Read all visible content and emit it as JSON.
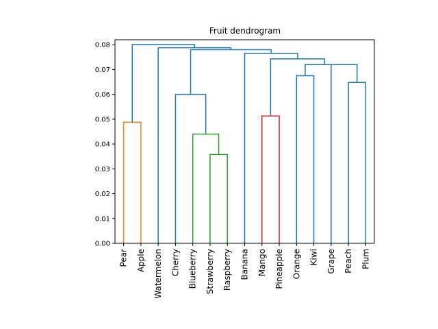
{
  "chart_data": {
    "type": "dendrogram",
    "title": "Fruit dendrogram",
    "xlabel": "",
    "ylabel": "",
    "ylim": [
      0,
      0.082
    ],
    "yticks": [
      "0.00",
      "0.01",
      "0.02",
      "0.03",
      "0.04",
      "0.05",
      "0.06",
      "0.07",
      "0.08"
    ],
    "ytick_values": [
      0,
      0.01,
      0.02,
      0.03,
      0.04,
      0.05,
      0.06,
      0.07,
      0.08
    ],
    "leaves": [
      "Pear",
      "Apple",
      "Watermelon",
      "Cherry",
      "Blueberry",
      "Strawberry",
      "Raspberry",
      "Banana",
      "Mango",
      "Pineapple",
      "Orange",
      "Kiwi",
      "Grape",
      "Peach",
      "Plum"
    ],
    "colors": {
      "above_threshold": "#1f77b4",
      "cluster_1": "#ff7f0e",
      "cluster_2": "#2ca02c",
      "cluster_3": "#d62728"
    },
    "links": [
      {
        "left": "Pear",
        "right": "Apple",
        "height": 0.0488,
        "color": "#ff7f0e"
      },
      {
        "left": "Strawberry",
        "right": "Raspberry",
        "height": 0.0358,
        "color": "#2ca02c"
      },
      {
        "left": "Blueberry",
        "right": "Strawberry+Raspberry",
        "height": 0.044,
        "color": "#2ca02c"
      },
      {
        "left": "Mango",
        "right": "Pineapple",
        "height": 0.0513,
        "color": "#d62728"
      },
      {
        "left": "Cherry",
        "right": "Blueberry+Strawberry+Raspberry",
        "height": 0.06,
        "color": "#1f77b4"
      },
      {
        "left": "Peach",
        "right": "Plum",
        "height": 0.0648,
        "color": "#1f77b4"
      },
      {
        "left": "Orange",
        "right": "Kiwi",
        "height": 0.0675,
        "color": "#1f77b4"
      },
      {
        "left": "Grape",
        "right": "Peach+Plum",
        "height": 0.072,
        "color": "#1f77b4"
      },
      {
        "left": "Orange+Kiwi",
        "right": "Grape+Peach+Plum",
        "height": 0.072,
        "color": "#1f77b4"
      },
      {
        "left": "Mango+Pineapple",
        "right": "Orange+Kiwi+Grape+Peach+Plum",
        "height": 0.0743,
        "color": "#1f77b4"
      },
      {
        "left": "Banana",
        "right": "Mango..Plum",
        "height": 0.0765,
        "color": "#1f77b4"
      },
      {
        "left": "Cherry+Blueberry+Strawberry+Raspberry",
        "right": "Banana..Plum",
        "height": 0.078,
        "color": "#1f77b4"
      },
      {
        "left": "Watermelon",
        "right": "Cherry..Plum",
        "height": 0.0788,
        "color": "#1f77b4"
      },
      {
        "left": "Pear+Apple",
        "right": "Watermelon..Plum",
        "height": 0.0801,
        "color": "#1f77b4"
      }
    ]
  }
}
